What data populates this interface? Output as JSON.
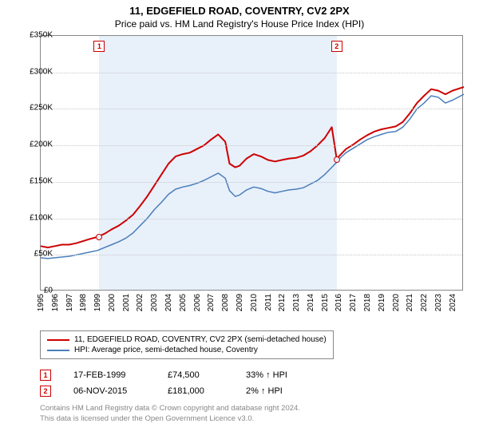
{
  "title": "11, EDGEFIELD ROAD, COVENTRY, CV2 2PX",
  "subtitle": "Price paid vs. HM Land Registry's House Price Index (HPI)",
  "chart": {
    "type": "line",
    "background_color": "#ffffff",
    "shade_color": "#e8f0fa",
    "grid_color": "#c8c8c8",
    "border_color": "#888888",
    "x": {
      "min": 1995,
      "max": 2024.8,
      "ticks": [
        1995,
        1996,
        1997,
        1998,
        1999,
        2000,
        2001,
        2002,
        2003,
        2004,
        2005,
        2006,
        2007,
        2008,
        2009,
        2010,
        2011,
        2012,
        2013,
        2014,
        2015,
        2016,
        2017,
        2018,
        2019,
        2020,
        2021,
        2022,
        2023,
        2024
      ]
    },
    "y": {
      "min": 0,
      "max": 350000,
      "step": 50000,
      "labels": [
        "£0",
        "£50K",
        "£100K",
        "£150K",
        "£200K",
        "£250K",
        "£300K",
        "£350K"
      ]
    },
    "series": [
      {
        "name": "11, EDGEFIELD ROAD, COVENTRY, CV2 2PX (semi-detached house)",
        "color": "#cc0000",
        "width": 2,
        "points": [
          [
            1995,
            62000
          ],
          [
            1995.5,
            60000
          ],
          [
            1996,
            62000
          ],
          [
            1996.5,
            64000
          ],
          [
            1997,
            64000
          ],
          [
            1997.5,
            66000
          ],
          [
            1998,
            69000
          ],
          [
            1998.5,
            72000
          ],
          [
            1999,
            74500
          ],
          [
            1999.5,
            79000
          ],
          [
            2000,
            85000
          ],
          [
            2000.5,
            90000
          ],
          [
            2001,
            97000
          ],
          [
            2001.5,
            105000
          ],
          [
            2002,
            117000
          ],
          [
            2002.5,
            130000
          ],
          [
            2003,
            145000
          ],
          [
            2003.5,
            160000
          ],
          [
            2004,
            175000
          ],
          [
            2004.5,
            185000
          ],
          [
            2005,
            188000
          ],
          [
            2005.5,
            190000
          ],
          [
            2006,
            195000
          ],
          [
            2006.5,
            200000
          ],
          [
            2007,
            208000
          ],
          [
            2007.5,
            215000
          ],
          [
            2008,
            205000
          ],
          [
            2008.3,
            175000
          ],
          [
            2008.7,
            170000
          ],
          [
            2009,
            172000
          ],
          [
            2009.5,
            182000
          ],
          [
            2010,
            188000
          ],
          [
            2010.5,
            185000
          ],
          [
            2011,
            180000
          ],
          [
            2011.5,
            178000
          ],
          [
            2012,
            180000
          ],
          [
            2012.5,
            182000
          ],
          [
            2013,
            183000
          ],
          [
            2013.5,
            186000
          ],
          [
            2014,
            192000
          ],
          [
            2014.5,
            200000
          ],
          [
            2015,
            210000
          ],
          [
            2015.5,
            225000
          ],
          [
            2015.85,
            181000
          ],
          [
            2016,
            185000
          ],
          [
            2016.5,
            195000
          ],
          [
            2017,
            201000
          ],
          [
            2017.5,
            208000
          ],
          [
            2018,
            214000
          ],
          [
            2018.5,
            219000
          ],
          [
            2019,
            222000
          ],
          [
            2019.5,
            224000
          ],
          [
            2020,
            226000
          ],
          [
            2020.5,
            232000
          ],
          [
            2021,
            244000
          ],
          [
            2021.5,
            258000
          ],
          [
            2022,
            268000
          ],
          [
            2022.5,
            277000
          ],
          [
            2023,
            275000
          ],
          [
            2023.5,
            270000
          ],
          [
            2024,
            275000
          ],
          [
            2024.8,
            280000
          ]
        ]
      },
      {
        "name": "HPI: Average price, semi-detached house, Coventry",
        "color": "#4a7ebb",
        "width": 1.5,
        "points": [
          [
            1995,
            46000
          ],
          [
            1995.5,
            45000
          ],
          [
            1996,
            46000
          ],
          [
            1996.5,
            47000
          ],
          [
            1997,
            48000
          ],
          [
            1997.5,
            50000
          ],
          [
            1998,
            52000
          ],
          [
            1998.5,
            54000
          ],
          [
            1999,
            56000
          ],
          [
            1999.5,
            60000
          ],
          [
            2000,
            64000
          ],
          [
            2000.5,
            68000
          ],
          [
            2001,
            73000
          ],
          [
            2001.5,
            80000
          ],
          [
            2002,
            90000
          ],
          [
            2002.5,
            100000
          ],
          [
            2003,
            112000
          ],
          [
            2003.5,
            122000
          ],
          [
            2004,
            133000
          ],
          [
            2004.5,
            140000
          ],
          [
            2005,
            143000
          ],
          [
            2005.5,
            145000
          ],
          [
            2006,
            148000
          ],
          [
            2006.5,
            152000
          ],
          [
            2007,
            157000
          ],
          [
            2007.5,
            162000
          ],
          [
            2008,
            155000
          ],
          [
            2008.3,
            138000
          ],
          [
            2008.7,
            130000
          ],
          [
            2009,
            132000
          ],
          [
            2009.5,
            139000
          ],
          [
            2010,
            143000
          ],
          [
            2010.5,
            141000
          ],
          [
            2011,
            137000
          ],
          [
            2011.5,
            135000
          ],
          [
            2012,
            137000
          ],
          [
            2012.5,
            139000
          ],
          [
            2013,
            140000
          ],
          [
            2013.5,
            142000
          ],
          [
            2014,
            147000
          ],
          [
            2014.5,
            152000
          ],
          [
            2015,
            160000
          ],
          [
            2015.5,
            170000
          ],
          [
            2015.85,
            177000
          ],
          [
            2016,
            181000
          ],
          [
            2016.5,
            190000
          ],
          [
            2017,
            196000
          ],
          [
            2017.5,
            202000
          ],
          [
            2018,
            208000
          ],
          [
            2018.5,
            212000
          ],
          [
            2019,
            215000
          ],
          [
            2019.5,
            218000
          ],
          [
            2020,
            219000
          ],
          [
            2020.5,
            225000
          ],
          [
            2021,
            236000
          ],
          [
            2021.5,
            250000
          ],
          [
            2022,
            258000
          ],
          [
            2022.5,
            268000
          ],
          [
            2023,
            266000
          ],
          [
            2023.5,
            258000
          ],
          [
            2024,
            262000
          ],
          [
            2024.8,
            270000
          ]
        ]
      }
    ],
    "markers": [
      {
        "n": "1",
        "x": 1999.13,
        "y": 74500,
        "date": "17-FEB-1999",
        "price": "£74,500",
        "delta": "33% ↑ HPI"
      },
      {
        "n": "2",
        "x": 2015.85,
        "y": 181000,
        "date": "06-NOV-2015",
        "price": "£181,000",
        "delta": "2% ↑ HPI"
      }
    ]
  },
  "legend": {
    "border_color": "#888888",
    "items": [
      {
        "color": "#cc0000",
        "label": "11, EDGEFIELD ROAD, COVENTRY, CV2 2PX (semi-detached house)"
      },
      {
        "color": "#4a7ebb",
        "label": "HPI: Average price, semi-detached house, Coventry"
      }
    ]
  },
  "footer_line1": "Contains HM Land Registry data © Crown copyright and database right 2024.",
  "footer_line2": "This data is licensed under the Open Government Licence v3.0."
}
